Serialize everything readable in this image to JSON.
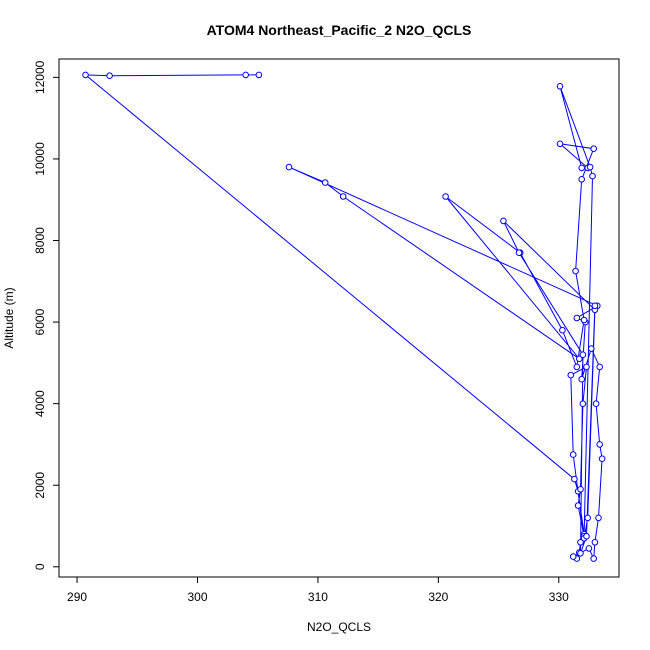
{
  "chart_data": {
    "type": "line",
    "title": "ATOM4 Northeast_Pacific_2 N2O_QCLS",
    "xlabel": "N2O_QCLS",
    "ylabel": "Altitude (m)",
    "xlim": [
      288.5,
      335.0
    ],
    "ylim": [
      -250,
      12450
    ],
    "xticks": [
      290,
      300,
      310,
      320,
      330
    ],
    "yticks": [
      0,
      2000,
      4000,
      6000,
      8000,
      10000,
      12000
    ],
    "grid": false,
    "legend": "none",
    "series_color": "#0000ff",
    "markers": "open-circle",
    "points": [
      [
        305.1,
        12060
      ],
      [
        304.0,
        12060
      ],
      [
        292.7,
        12040
      ],
      [
        290.7,
        12060
      ],
      [
        331.3,
        2150
      ],
      [
        331.6,
        1850
      ],
      [
        332.1,
        800
      ],
      [
        331.8,
        600
      ],
      [
        331.7,
        350
      ],
      [
        331.5,
        200
      ],
      [
        331.2,
        250
      ],
      [
        332.5,
        450
      ],
      [
        332.9,
        200
      ],
      [
        333.0,
        600
      ],
      [
        333.3,
        1200
      ],
      [
        333.6,
        2650
      ],
      [
        333.4,
        3000
      ],
      [
        333.1,
        4000
      ],
      [
        333.4,
        4900
      ],
      [
        332.7,
        5350
      ],
      [
        331.9,
        4600
      ],
      [
        332.2,
        6000
      ],
      [
        331.5,
        6100
      ],
      [
        333.2,
        6400
      ],
      [
        307.6,
        9800
      ],
      [
        310.6,
        9420
      ],
      [
        312.1,
        9080
      ],
      [
        331.7,
        5100
      ],
      [
        320.6,
        9080
      ],
      [
        326.8,
        7700
      ],
      [
        330.3,
        5800
      ],
      [
        331.5,
        4900
      ],
      [
        332.1,
        6050
      ],
      [
        331.4,
        7250
      ],
      [
        331.9,
        9500
      ],
      [
        332.9,
        10250
      ],
      [
        330.1,
        10370
      ],
      [
        332.4,
        9780
      ],
      [
        331.9,
        9780
      ],
      [
        330.1,
        11780
      ],
      [
        332.6,
        9800
      ],
      [
        332.8,
        9580
      ],
      [
        332.1,
        750
      ],
      [
        331.6,
        1500
      ],
      [
        331.8,
        1900
      ],
      [
        332.0,
        4000
      ],
      [
        332.3,
        4900
      ],
      [
        331.0,
        4700
      ],
      [
        331.2,
        2750
      ],
      [
        332.1,
        700
      ],
      [
        332.4,
        1200
      ],
      [
        333.0,
        6300
      ],
      [
        325.4,
        8480
      ],
      [
        326.7,
        7700
      ],
      [
        332.0,
        5200
      ],
      [
        331.8,
        330
      ],
      [
        332.3,
        750
      ],
      [
        333.0,
        6400
      ]
    ]
  }
}
